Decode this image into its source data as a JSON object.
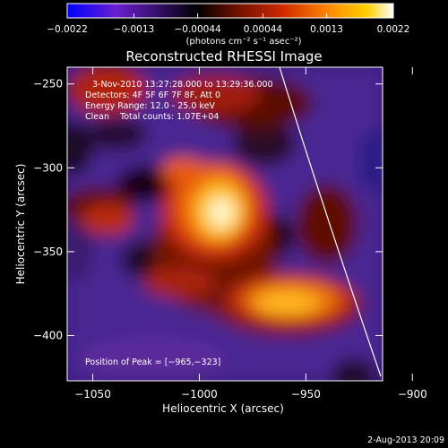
{
  "chart_data": {
    "type": "heatmap",
    "title": "Reconstructed RHESSI Image",
    "xlabel": "Heliocentric X (arcsec)",
    "ylabel": "Heliocentric Y (arcsec)",
    "xlim": [
      -1062,
      -914
    ],
    "ylim": [
      -427,
      -240
    ],
    "x_ticks": [
      -1050,
      -1000,
      -950,
      -900
    ],
    "y_ticks": [
      -250,
      -300,
      -350,
      -400
    ],
    "x_tick_labels": [
      "−1050",
      "−1000",
      "−950",
      "−900"
    ],
    "y_tick_labels": [
      "−250",
      "−300",
      "−350",
      "−400"
    ],
    "colorbar": {
      "range": [
        -0.0022,
        0.0022
      ],
      "ticks": [
        -0.0022,
        -0.0013,
        -0.00044,
        0.00044,
        0.0013,
        0.0022
      ],
      "tick_labels": [
        "−0.0022",
        "−0.0013",
        "−0.00044",
        "0.00044",
        "0.0013",
        "0.0022"
      ],
      "units_label": "(photons cm⁻² s⁻¹ asec⁻²)",
      "colors": [
        "#0000ff",
        "#6a1fd0",
        "#000000",
        "#6e1000",
        "#d02800",
        "#ff8800",
        "#ffd000",
        "#ffffff"
      ]
    },
    "annotations": [
      "3-Nov-2010 13:27:28.000 to 13:29:36.000",
      "Detectors: 4F 5F 6F 7F 8F, Att 0",
      "Energy Range: 12.0 - 25.0 keV",
      "Clean    Total counts: 1.07E+04"
    ],
    "peak_label": "Position of Peak = [−965,−323]",
    "peak": [
      -965,
      -323
    ],
    "grid": false
  },
  "footer": {
    "date": "2-Aug-2013 20:09"
  }
}
